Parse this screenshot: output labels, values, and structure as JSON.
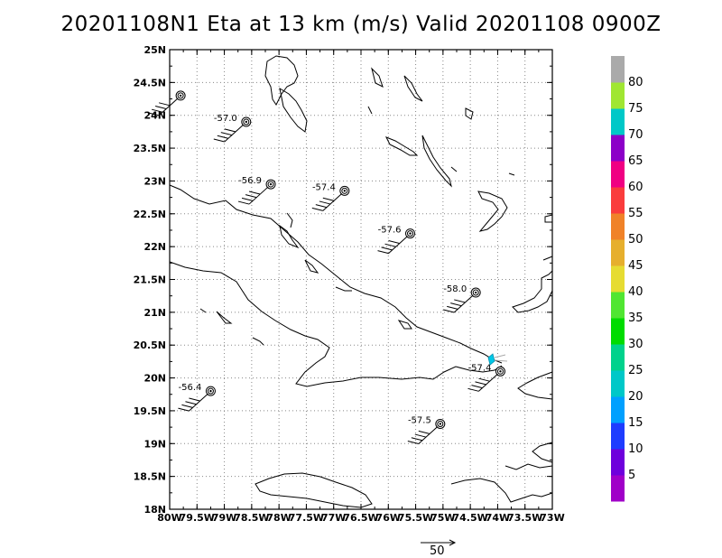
{
  "title": "20201108N1 Eta at 13 km (m/s) Valid 20201108 0900Z",
  "map": {
    "lon_range": [
      -80,
      -73
    ],
    "lat_range": [
      18,
      25
    ],
    "x_ticks": [
      "80W",
      "79.5W",
      "79W",
      "78.5W",
      "78W",
      "77.5W",
      "77W",
      "76.5W",
      "76W",
      "75.5W",
      "75W",
      "74.5W",
      "74W",
      "73.5W",
      "73W"
    ],
    "y_ticks": [
      "18N",
      "18.5N",
      "19N",
      "19.5N",
      "20N",
      "20.5N",
      "21N",
      "21.5N",
      "22N",
      "22.5N",
      "23N",
      "23.5N",
      "24N",
      "24.5N",
      "25N"
    ],
    "grid": "dotted"
  },
  "observations": [
    {
      "lon": -79.8,
      "lat": 24.3,
      "label": ""
    },
    {
      "lon": -78.6,
      "lat": 23.9,
      "label": "-57.0"
    },
    {
      "lon": -78.15,
      "lat": 22.95,
      "label": "-56.9"
    },
    {
      "lon": -76.8,
      "lat": 22.85,
      "label": "-57.4"
    },
    {
      "lon": -75.6,
      "lat": 22.2,
      "label": "-57.6"
    },
    {
      "lon": -74.4,
      "lat": 21.3,
      "label": "-58.0"
    },
    {
      "lon": -73.95,
      "lat": 20.1,
      "label": "-57.4"
    },
    {
      "lon": -79.25,
      "lat": 19.8,
      "label": "-56.4"
    },
    {
      "lon": -75.05,
      "lat": 19.3,
      "label": "-57.5"
    }
  ],
  "colorbar": {
    "labels": [
      "5",
      "10",
      "15",
      "20",
      "25",
      "30",
      "35",
      "40",
      "45",
      "50",
      "55",
      "60",
      "65",
      "70",
      "75",
      "80"
    ],
    "colors": [
      "#a000c8",
      "#6e00dc",
      "#1e3cff",
      "#00a0ff",
      "#00c8c8",
      "#00d28c",
      "#00dc00",
      "#50e632",
      "#e6dc32",
      "#e6af2d",
      "#f08228",
      "#fa3c3c",
      "#f00082",
      "#8c00c8",
      "#00c8c8",
      "#a0e632",
      "#aaaaaa"
    ]
  },
  "vector_legend": {
    "value": "50"
  }
}
